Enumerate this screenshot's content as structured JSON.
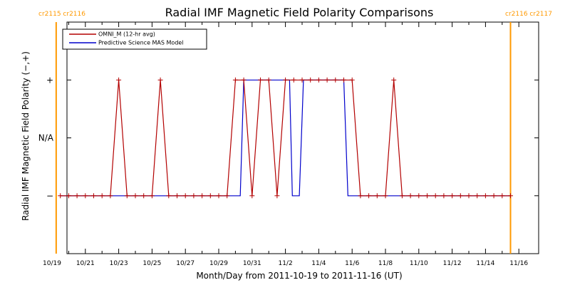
{
  "chart_data": {
    "type": "line",
    "title": "Radial IMF Magnetic Field Polarity Comparisons",
    "xlabel": "Month/Day from 2011-10-19 to 2011-11-16 (UT)",
    "ylabel": "Radial IMF Magnetic Field Polarity (−,+)",
    "x_range": [
      "2011-10-19",
      "2011-11-16T12:00"
    ],
    "y_categories": [
      "−",
      "N/A",
      "+"
    ],
    "y_category_values": [
      -1,
      0,
      1
    ],
    "ylim": [
      -2,
      2
    ],
    "grid": false,
    "legend_position": "top-left",
    "x_tick_labels": [
      "10/19",
      "10/21",
      "10/23",
      "10/25",
      "10/27",
      "10/29",
      "10/31",
      "11/2",
      "11/4",
      "11/6",
      "11/8",
      "11/10",
      "11/12",
      "11/14",
      "11/16"
    ],
    "x_tick_dates": [
      "2011-10-19",
      "2011-10-21",
      "2011-10-23",
      "2011-10-25",
      "2011-10-27",
      "2011-10-29",
      "2011-10-31",
      "2011-11-02",
      "2011-11-04",
      "2011-11-06",
      "2011-11-08",
      "2011-11-10",
      "2011-11-12",
      "2011-11-14",
      "2011-11-16"
    ],
    "carrington_markers": [
      {
        "label": "cr2115 cr2116",
        "x": "2011-10-19T06:00",
        "color": "#ff9900"
      },
      {
        "label": "cr2116 cr2117",
        "x": "2011-11-15T12:00",
        "color": "#ff9900"
      }
    ],
    "series": [
      {
        "name": "OMNI_M (12-hr avg)",
        "color": "#b30000",
        "show_markers": true,
        "points": [
          [
            "2011-10-19T12:00",
            -1
          ],
          [
            "2011-10-20T00:00",
            -1
          ],
          [
            "2011-10-20T12:00",
            -1
          ],
          [
            "2011-10-21T00:00",
            -1
          ],
          [
            "2011-10-21T12:00",
            -1
          ],
          [
            "2011-10-22T00:00",
            -1
          ],
          [
            "2011-10-22T12:00",
            -1
          ],
          [
            "2011-10-23T00:00",
            1
          ],
          [
            "2011-10-23T12:00",
            -1
          ],
          [
            "2011-10-24T00:00",
            -1
          ],
          [
            "2011-10-24T12:00",
            -1
          ],
          [
            "2011-10-25T00:00",
            -1
          ],
          [
            "2011-10-25T12:00",
            1
          ],
          [
            "2011-10-26T00:00",
            -1
          ],
          [
            "2011-10-26T12:00",
            -1
          ],
          [
            "2011-10-27T00:00",
            -1
          ],
          [
            "2011-10-27T12:00",
            -1
          ],
          [
            "2011-10-28T00:00",
            -1
          ],
          [
            "2011-10-28T12:00",
            -1
          ],
          [
            "2011-10-29T00:00",
            -1
          ],
          [
            "2011-10-29T12:00",
            -1
          ],
          [
            "2011-10-30T00:00",
            1
          ],
          [
            "2011-10-30T12:00",
            1
          ],
          [
            "2011-10-31T00:00",
            -1
          ],
          [
            "2011-10-31T12:00",
            1
          ],
          [
            "2011-11-01T00:00",
            1
          ],
          [
            "2011-11-01T12:00",
            -1
          ],
          [
            "2011-11-02T00:00",
            1
          ],
          [
            "2011-11-02T12:00",
            1
          ],
          [
            "2011-11-03T00:00",
            1
          ],
          [
            "2011-11-03T12:00",
            1
          ],
          [
            "2011-11-04T00:00",
            1
          ],
          [
            "2011-11-04T12:00",
            1
          ],
          [
            "2011-11-05T00:00",
            1
          ],
          [
            "2011-11-05T12:00",
            1
          ],
          [
            "2011-11-06T00:00",
            1
          ],
          [
            "2011-11-06T12:00",
            -1
          ],
          [
            "2011-11-07T00:00",
            -1
          ],
          [
            "2011-11-07T12:00",
            -1
          ],
          [
            "2011-11-08T00:00",
            -1
          ],
          [
            "2011-11-08T12:00",
            1
          ],
          [
            "2011-11-09T00:00",
            -1
          ],
          [
            "2011-11-09T12:00",
            -1
          ],
          [
            "2011-11-10T00:00",
            -1
          ],
          [
            "2011-11-10T12:00",
            -1
          ],
          [
            "2011-11-11T00:00",
            -1
          ],
          [
            "2011-11-11T12:00",
            -1
          ],
          [
            "2011-11-12T00:00",
            -1
          ],
          [
            "2011-11-12T12:00",
            -1
          ],
          [
            "2011-11-13T00:00",
            -1
          ],
          [
            "2011-11-13T12:00",
            -1
          ],
          [
            "2011-11-14T00:00",
            -1
          ],
          [
            "2011-11-14T12:00",
            -1
          ],
          [
            "2011-11-15T00:00",
            -1
          ],
          [
            "2011-11-15T12:00",
            -1
          ]
        ]
      },
      {
        "name": "Predictive Science MAS Model",
        "color": "#0000cc",
        "show_markers": false,
        "points": [
          [
            "2011-10-19T12:00",
            -1
          ],
          [
            "2011-10-30T07:00",
            -1
          ],
          [
            "2011-10-30T12:00",
            1
          ],
          [
            "2011-11-02T06:00",
            1
          ],
          [
            "2011-11-02T10:00",
            -1
          ],
          [
            "2011-11-02T20:00",
            -1
          ],
          [
            "2011-11-03T02:00",
            1
          ],
          [
            "2011-11-05T12:00",
            1
          ],
          [
            "2011-11-05T18:00",
            -1
          ],
          [
            "2011-11-15T12:00",
            -1
          ]
        ]
      }
    ]
  }
}
